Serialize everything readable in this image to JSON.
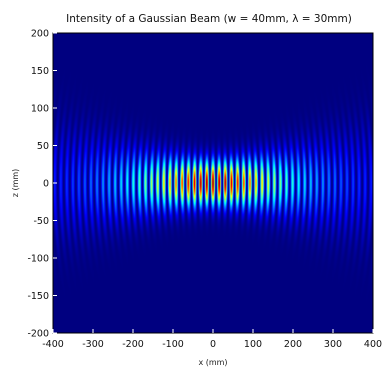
{
  "chart_data": {
    "type": "heatmap",
    "title": "Intensity of a Gaussian Beam (w = 40mm, λ = 30mm)",
    "xlabel": "x (mm)",
    "ylabel": "z (mm)",
    "xlim": [
      -400,
      400
    ],
    "ylim": [
      -200,
      200
    ],
    "x_ticks": [
      "-400",
      "-300",
      "-200",
      "-100",
      "0",
      "100",
      "200",
      "300",
      "400"
    ],
    "y_ticks": [
      "200",
      "150",
      "100",
      "50",
      "0",
      "-50",
      "-100",
      "-150",
      "-200"
    ],
    "beam_waist_mm": 40,
    "wavelength_mm": 30,
    "colormap": "jet",
    "grid": false
  }
}
